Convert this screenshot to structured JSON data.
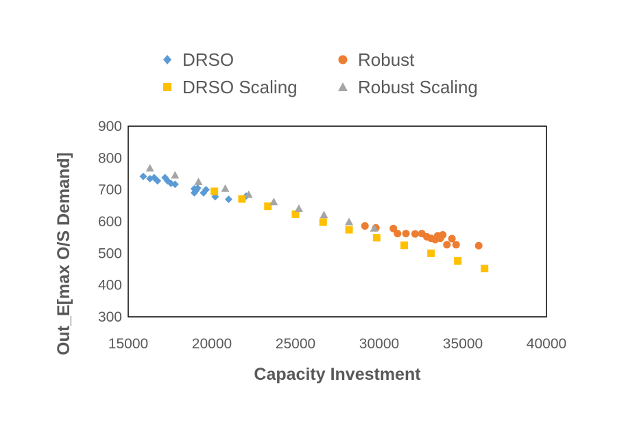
{
  "chart_data": {
    "type": "scatter",
    "title": "",
    "xlabel": "Capacity Investment",
    "ylabel": "Out_E[max O/S Demand]",
    "xlim": [
      15000,
      40000
    ],
    "ylim": [
      300,
      900
    ],
    "xticks": [
      15000,
      20000,
      25000,
      30000,
      35000,
      40000
    ],
    "yticks": [
      300,
      400,
      500,
      600,
      700,
      800,
      900
    ],
    "grid": false,
    "legend_position": "top",
    "series": [
      {
        "name": "DRSO",
        "marker": "diamond",
        "color": "#5b9bd5",
        "points": [
          [
            15900,
            742
          ],
          [
            16300,
            735
          ],
          [
            16550,
            738
          ],
          [
            16750,
            728
          ],
          [
            17200,
            738
          ],
          [
            17350,
            728
          ],
          [
            17550,
            720
          ],
          [
            17800,
            717
          ],
          [
            18950,
            703
          ],
          [
            18950,
            690
          ],
          [
            19050,
            697
          ],
          [
            19150,
            705
          ],
          [
            19500,
            690
          ],
          [
            19650,
            700
          ],
          [
            20200,
            678
          ],
          [
            21000,
            670
          ],
          [
            22050,
            680
          ]
        ]
      },
      {
        "name": "Robust",
        "marker": "circle",
        "color": "#ed7d31",
        "points": [
          [
            29150,
            586
          ],
          [
            29800,
            580
          ],
          [
            30850,
            578
          ],
          [
            31100,
            562
          ],
          [
            31600,
            562
          ],
          [
            32150,
            561
          ],
          [
            32550,
            562
          ],
          [
            32850,
            552
          ],
          [
            33100,
            547
          ],
          [
            33350,
            543
          ],
          [
            33500,
            555
          ],
          [
            33650,
            547
          ],
          [
            33800,
            558
          ],
          [
            34050,
            527
          ],
          [
            34350,
            546
          ],
          [
            34600,
            527
          ],
          [
            35950,
            524
          ]
        ]
      },
      {
        "name": "DRSO Scaling",
        "marker": "square",
        "color": "#ffc000",
        "points": [
          [
            20150,
            695
          ],
          [
            21800,
            671
          ],
          [
            23350,
            648
          ],
          [
            25000,
            623
          ],
          [
            26650,
            598
          ],
          [
            28200,
            574
          ],
          [
            29850,
            549
          ],
          [
            31500,
            525
          ],
          [
            33100,
            500
          ],
          [
            34700,
            476
          ],
          [
            36300,
            452
          ]
        ]
      },
      {
        "name": "Robust Scaling",
        "marker": "triangle",
        "color": "#a5a5a5",
        "points": [
          [
            16300,
            767
          ],
          [
            17800,
            745
          ],
          [
            19200,
            724
          ],
          [
            20800,
            703
          ],
          [
            22200,
            684
          ],
          [
            23700,
            661
          ],
          [
            25200,
            640
          ],
          [
            26700,
            620
          ],
          [
            28200,
            598
          ],
          [
            29700,
            578
          ]
        ]
      }
    ]
  }
}
